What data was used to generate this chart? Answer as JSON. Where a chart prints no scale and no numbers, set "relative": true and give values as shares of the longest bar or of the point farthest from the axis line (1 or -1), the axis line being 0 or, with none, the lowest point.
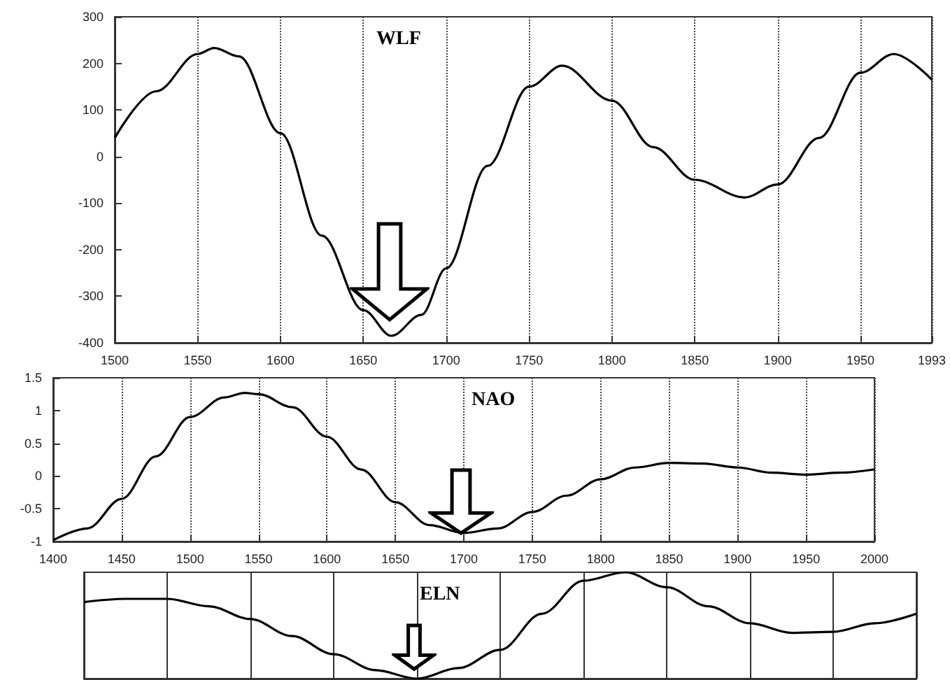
{
  "chart_data": [
    {
      "type": "line",
      "title": "WLF",
      "x": [
        1500,
        1525,
        1550,
        1560,
        1575,
        1600,
        1625,
        1650,
        1667,
        1685,
        1700,
        1725,
        1750,
        1770,
        1800,
        1825,
        1850,
        1880,
        1900,
        1925,
        1950,
        1970,
        1993
      ],
      "series": [
        {
          "color": "#000000",
          "values": [
            40,
            140,
            220,
            233,
            215,
            50,
            -170,
            -330,
            -385,
            -340,
            -240,
            -20,
            150,
            195,
            120,
            20,
            -50,
            -88,
            -60,
            40,
            180,
            220,
            165
          ]
        }
      ],
      "xlim": [
        1500,
        1993
      ],
      "xticks": [
        1500,
        1550,
        1600,
        1650,
        1700,
        1750,
        1800,
        1850,
        1900,
        1950,
        1993
      ],
      "ylim": [
        -400,
        300
      ],
      "yticks": [
        -400,
        -300,
        -200,
        -100,
        0,
        100,
        200,
        300
      ],
      "grid": "x",
      "marker": "none",
      "line_style": "solid"
    },
    {
      "type": "line",
      "title": "NAO",
      "x": [
        1400,
        1425,
        1450,
        1475,
        1500,
        1525,
        1540,
        1550,
        1575,
        1600,
        1625,
        1650,
        1675,
        1700,
        1725,
        1750,
        1775,
        1800,
        1825,
        1850,
        1875,
        1900,
        1925,
        1950,
        1975,
        2000
      ],
      "series": [
        {
          "color": "#000000",
          "values": [
            -0.98,
            -0.8,
            -0.35,
            0.3,
            0.9,
            1.2,
            1.27,
            1.25,
            1.05,
            0.6,
            0.1,
            -0.4,
            -0.75,
            -0.87,
            -0.8,
            -0.55,
            -0.3,
            -0.05,
            0.13,
            0.2,
            0.19,
            0.13,
            0.05,
            0.02,
            0.05,
            0.1
          ]
        }
      ],
      "xlim": [
        1400,
        2000
      ],
      "xticks": [
        1400,
        1450,
        1500,
        1550,
        1600,
        1650,
        1700,
        1750,
        1800,
        1850,
        1900,
        1950,
        2000
      ],
      "ylim": [
        -1,
        1.5
      ],
      "yticks": [
        -1,
        -0.5,
        0,
        0.5,
        1,
        1.5
      ],
      "grid": "x",
      "marker": "none",
      "line_style": "solid"
    },
    {
      "type": "line",
      "title": "ELN",
      "relative": true,
      "categories": [
        null,
        null,
        null,
        null,
        null,
        null,
        null,
        null,
        null,
        null,
        null,
        null,
        null,
        null,
        null,
        null,
        null,
        null,
        null,
        null,
        null
      ],
      "series": [
        {
          "color": "#000000",
          "values": [
            0.72,
            0.75,
            0.75,
            0.68,
            0.56,
            0.4,
            0.23,
            0.08,
            0,
            0.1,
            0.27,
            0.61,
            0.92,
            1,
            0.86,
            0.68,
            0.52,
            0.43,
            0.44,
            0.52,
            0.61
          ]
        }
      ],
      "grid": "x",
      "tick_labels": false,
      "marker": "none",
      "line_style": "solid"
    }
  ]
}
